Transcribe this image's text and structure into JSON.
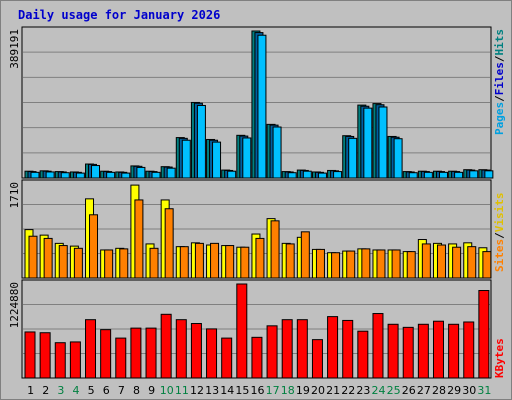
{
  "title": "Daily usage for January 2026",
  "colors": {
    "title": "#0000cc",
    "pages": "#00c0ff",
    "files": "#0060a0",
    "hits": "#008080",
    "visits": "#ffff00",
    "sites": "#ff8000",
    "kbytes": "#ff0000",
    "weekend": "#008040",
    "weekday": "#000000",
    "grid": "#808080"
  },
  "legend": {
    "top": [
      {
        "text": "Pages",
        "color": "#00a0e0"
      },
      {
        "text": "/",
        "color": "#000000"
      },
      {
        "text": "Files",
        "color": "#0000cc"
      },
      {
        "text": "/",
        "color": "#000000"
      },
      {
        "text": "Hits",
        "color": "#008080"
      }
    ],
    "middle": [
      {
        "text": "Sites",
        "color": "#ff8000"
      },
      {
        "text": "/",
        "color": "#000000"
      },
      {
        "text": "Visits",
        "color": "#e0c000"
      }
    ],
    "bottom": [
      {
        "text": "KBytes",
        "color": "#ff0000"
      }
    ]
  },
  "chart_data": [
    {
      "type": "bar",
      "panel": "hits-files-pages",
      "ymax_label": "389191",
      "ylim": [
        0,
        389191
      ],
      "categories": [
        "1",
        "2",
        "3",
        "4",
        "5",
        "6",
        "7",
        "8",
        "9",
        "10",
        "11",
        "12",
        "13",
        "14",
        "15",
        "16",
        "17",
        "18",
        "19",
        "20",
        "21",
        "22",
        "23",
        "24",
        "25",
        "26",
        "27",
        "28",
        "29",
        "30",
        "31"
      ],
      "weekend_days": [
        "3",
        "4",
        "10",
        "11",
        "17",
        "18",
        "24",
        "25",
        "31"
      ],
      "series": [
        {
          "name": "Hits",
          "values": [
            18000,
            19000,
            17000,
            16000,
            37000,
            18000,
            16000,
            32000,
            18000,
            30000,
            107000,
            200000,
            102000,
            21000,
            113000,
            389191,
            142000,
            17000,
            21000,
            16000,
            20000,
            112000,
            193000,
            197000,
            110000,
            17000,
            18000,
            18000,
            18000,
            22000,
            22000
          ]
        },
        {
          "name": "Files",
          "values": [
            17000,
            18000,
            16000,
            15000,
            36000,
            17000,
            15000,
            31000,
            17000,
            29000,
            105000,
            198000,
            100000,
            20000,
            111000,
            385000,
            140000,
            16000,
            20000,
            15000,
            19000,
            110000,
            190000,
            194000,
            108000,
            16000,
            17000,
            17000,
            17000,
            21000,
            21000
          ]
        },
        {
          "name": "Pages",
          "values": [
            15000,
            16000,
            14000,
            13000,
            33000,
            15000,
            13000,
            28000,
            15000,
            26000,
            100000,
            192000,
            95000,
            18000,
            106000,
            378000,
            135000,
            14000,
            18000,
            13000,
            17000,
            105000,
            185000,
            188000,
            104000,
            14000,
            15000,
            15000,
            15000,
            19000,
            19000
          ]
        }
      ]
    },
    {
      "type": "bar",
      "panel": "visits-sites",
      "ymax_label": "1710",
      "ylim": [
        0,
        1710
      ],
      "categories": [
        "1",
        "2",
        "3",
        "4",
        "5",
        "6",
        "7",
        "8",
        "9",
        "10",
        "11",
        "12",
        "13",
        "14",
        "15",
        "16",
        "17",
        "18",
        "19",
        "20",
        "21",
        "22",
        "23",
        "24",
        "25",
        "26",
        "27",
        "28",
        "29",
        "30",
        "31"
      ],
      "series": [
        {
          "name": "Visits",
          "values": [
            880,
            780,
            630,
            580,
            1440,
            510,
            540,
            1690,
            620,
            1420,
            570,
            640,
            600,
            590,
            560,
            800,
            1080,
            630,
            740,
            520,
            460,
            490,
            530,
            510,
            510,
            480,
            700,
            630,
            620,
            640,
            550
          ]
        },
        {
          "name": "Sites",
          "values": [
            760,
            720,
            590,
            540,
            1150,
            510,
            530,
            1420,
            540,
            1260,
            570,
            630,
            630,
            590,
            560,
            720,
            1040,
            620,
            840,
            520,
            460,
            490,
            530,
            510,
            510,
            480,
            620,
            600,
            560,
            570,
            480
          ]
        }
      ]
    },
    {
      "type": "bar",
      "panel": "kbytes",
      "ymax_label": "1224880",
      "ylim": [
        0,
        1224880
      ],
      "categories": [
        "1",
        "2",
        "3",
        "4",
        "5",
        "6",
        "7",
        "8",
        "9",
        "10",
        "11",
        "12",
        "13",
        "14",
        "15",
        "16",
        "17",
        "18",
        "19",
        "20",
        "21",
        "22",
        "23",
        "24",
        "25",
        "26",
        "27",
        "28",
        "29",
        "30",
        "31"
      ],
      "series": [
        {
          "name": "KBytes",
          "values": [
            600000,
            590000,
            460000,
            470000,
            760000,
            630000,
            520000,
            650000,
            650000,
            830000,
            760000,
            710000,
            640000,
            520000,
            1224880,
            530000,
            680000,
            760000,
            760000,
            500000,
            800000,
            750000,
            610000,
            840000,
            700000,
            660000,
            700000,
            740000,
            700000,
            730000,
            1140000
          ]
        }
      ]
    }
  ]
}
